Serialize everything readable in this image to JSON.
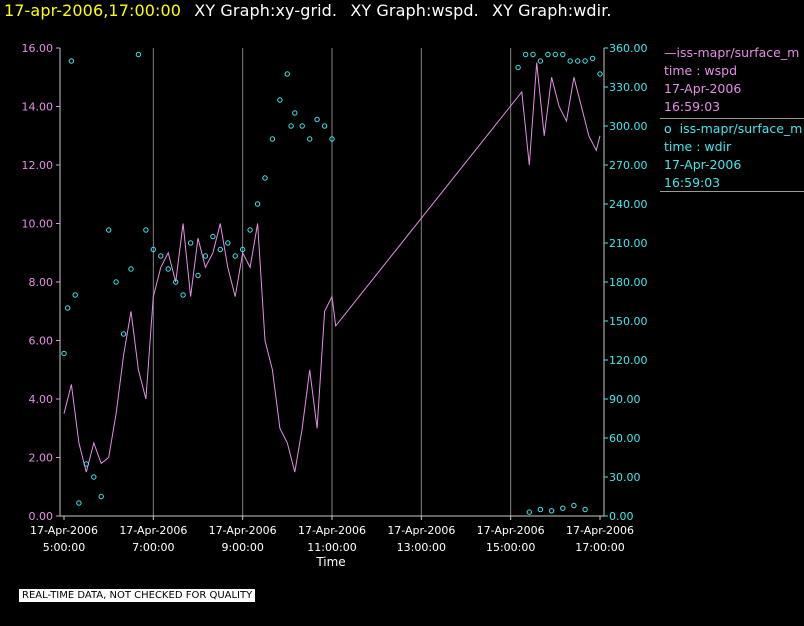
{
  "header": {
    "timestamp": "17-apr-2006,17:00:00",
    "graphs": [
      "XY Graph:xy-grid.",
      "XY Graph:wspd.",
      "XY Graph:wdir."
    ]
  },
  "legend": {
    "wspd": {
      "series": "iss-mapr/surface_m",
      "xy": "time : wspd",
      "date": "17-Apr-2006",
      "time": "16:59:03"
    },
    "wdir": {
      "series": "iss-mapr/surface_m",
      "xy": "time : wdir",
      "date": "17-Apr-2006",
      "time": "16:59:03"
    }
  },
  "disclaimer": "REAL-TIME DATA, NOT CHECKED FOR QUALITY",
  "colors": {
    "wspd": "#e58ee5",
    "wdir": "#40e8ee",
    "grid": "#7f7f7f",
    "axis": "#c8c8c8",
    "header_ts": "#ffff00"
  },
  "chart_data": {
    "type": "line",
    "title": "",
    "xlabel": "Time",
    "x_tick_labels": [
      [
        "17-Apr-2006",
        "5:00:00"
      ],
      [
        "17-Apr-2006",
        "7:00:00"
      ],
      [
        "17-Apr-2006",
        "9:00:00"
      ],
      [
        "17-Apr-2006",
        "11:00:00"
      ],
      [
        "17-Apr-2006",
        "13:00:00"
      ],
      [
        "17-Apr-2006",
        "15:00:00"
      ],
      [
        "17-Apr-2006",
        "17:00:00"
      ]
    ],
    "x_range": [
      "2006-04-17 05:00:00",
      "2006-04-17 17:00:00"
    ],
    "grid": "vertical",
    "y_left": {
      "series": "wspd",
      "range": [
        0,
        16
      ],
      "tick_labels": [
        "0.00",
        "2.00",
        "4.00",
        "6.00",
        "8.00",
        "10.00",
        "12.00",
        "14.00",
        "16.00"
      ]
    },
    "y_right": {
      "series": "wdir",
      "range": [
        0,
        360
      ],
      "tick_labels": [
        "0.00",
        "30.00",
        "60.00",
        "90.00",
        "120.00",
        "150.00",
        "180.00",
        "210.00",
        "240.00",
        "270.00",
        "300.00",
        "330.00",
        "360.00"
      ]
    },
    "series": [
      {
        "name": "iss-mapr/surface_m",
        "variable": "wspd",
        "style": "line",
        "x": [
          "5:00",
          "5:10",
          "5:20",
          "5:30",
          "5:40",
          "5:50",
          "6:00",
          "6:10",
          "6:20",
          "6:30",
          "6:40",
          "6:50",
          "7:00",
          "7:10",
          "7:20",
          "7:30",
          "7:40",
          "7:50",
          "8:00",
          "8:10",
          "8:20",
          "8:30",
          "8:40",
          "8:50",
          "9:00",
          "9:10",
          "9:20",
          "9:30",
          "9:40",
          "9:50",
          "10:00",
          "10:10",
          "10:20",
          "10:30",
          "10:40",
          "10:50",
          "11:00",
          "11:05",
          "15:15",
          "15:25",
          "15:35",
          "15:45",
          "15:55",
          "16:05",
          "16:15",
          "16:25",
          "16:35",
          "16:45",
          "16:55",
          "17:00"
        ],
        "values": [
          3.5,
          4.5,
          2.5,
          1.5,
          2.5,
          1.8,
          2.0,
          3.5,
          5.5,
          7.0,
          5.0,
          4.0,
          7.5,
          8.5,
          9.0,
          8.0,
          10.0,
          7.5,
          9.5,
          8.5,
          9.0,
          10.0,
          8.5,
          7.5,
          9.0,
          8.5,
          10.0,
          6.0,
          5.0,
          3.0,
          2.5,
          1.5,
          3.0,
          5.0,
          3.0,
          7.0,
          7.5,
          6.5,
          14.5,
          12.0,
          15.5,
          13.0,
          15.0,
          14.0,
          13.5,
          15.0,
          14.0,
          13.0,
          12.5,
          13.0
        ]
      },
      {
        "name": "iss-mapr/surface_m",
        "variable": "wdir",
        "style": "points",
        "x": [
          "5:00",
          "5:05",
          "5:10",
          "5:15",
          "5:20",
          "5:30",
          "5:40",
          "5:50",
          "6:00",
          "6:10",
          "6:20",
          "6:30",
          "6:40",
          "6:50",
          "7:00",
          "7:10",
          "7:20",
          "7:30",
          "7:40",
          "7:50",
          "8:00",
          "8:10",
          "8:20",
          "8:30",
          "8:40",
          "8:50",
          "9:00",
          "9:10",
          "9:20",
          "9:30",
          "9:40",
          "9:50",
          "10:00",
          "10:05",
          "10:10",
          "10:20",
          "10:30",
          "10:40",
          "10:50",
          "11:00",
          "15:10",
          "15:20",
          "15:30",
          "15:40",
          "15:50",
          "16:00",
          "16:10",
          "16:20",
          "16:30",
          "16:40",
          "16:50",
          "17:00",
          "15:25",
          "15:40",
          "15:55",
          "16:10",
          "16:25",
          "16:40"
        ],
        "values": [
          125,
          160,
          350,
          170,
          10,
          40,
          30,
          15,
          220,
          180,
          140,
          190,
          355,
          220,
          205,
          200,
          190,
          180,
          170,
          210,
          185,
          200,
          215,
          205,
          210,
          200,
          205,
          220,
          240,
          260,
          290,
          320,
          340,
          300,
          310,
          300,
          290,
          305,
          300,
          290,
          345,
          355,
          355,
          350,
          355,
          355,
          355,
          350,
          350,
          350,
          352,
          340,
          3,
          5,
          4,
          6,
          8,
          5
        ]
      }
    ]
  }
}
